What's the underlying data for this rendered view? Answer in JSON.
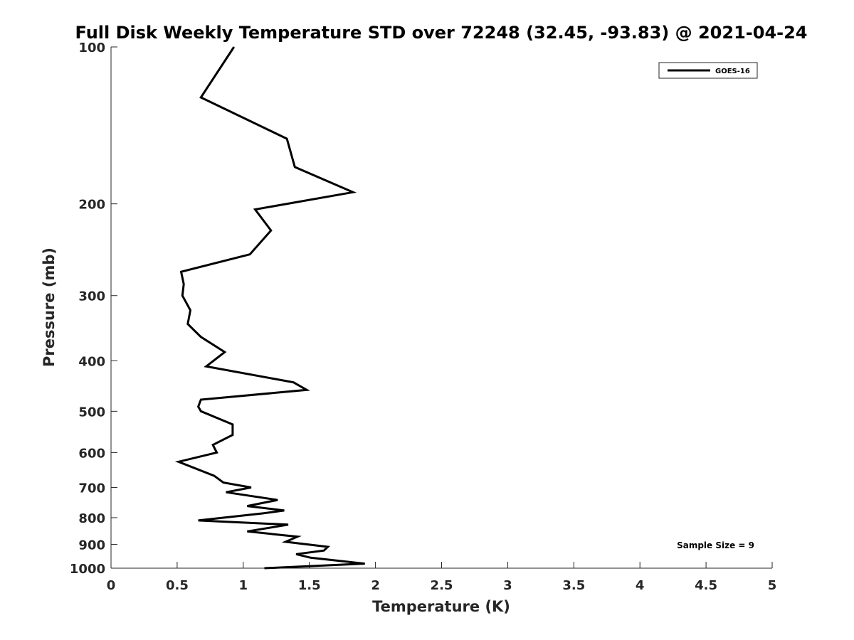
{
  "chart_data": {
    "type": "line",
    "title": "Full Disk Weekly Temperature STD over 72248 (32.45, -93.83) @ 2021-04-24",
    "xlabel": "Temperature (K)",
    "ylabel": "Pressure (mb)",
    "xlim": [
      0,
      5
    ],
    "ylim": [
      100,
      1000
    ],
    "y_scale": "log",
    "y_reversed": true,
    "grid": false,
    "legend_position": "top-right",
    "xticks": [
      0,
      0.5,
      1,
      1.5,
      2,
      2.5,
      3,
      3.5,
      4,
      4.5,
      5
    ],
    "xtick_labels": [
      "0",
      "0.5",
      "1",
      "1.5",
      "2",
      "2.5",
      "3",
      "3.5",
      "4",
      "4.5",
      "5"
    ],
    "yticks": [
      100,
      200,
      300,
      400,
      500,
      600,
      700,
      800,
      900,
      1000
    ],
    "ytick_labels": [
      "100",
      "200",
      "300",
      "400",
      "500",
      "600",
      "700",
      "800",
      "900",
      "1000"
    ],
    "series": [
      {
        "name": "GOES-16",
        "color": "#000000",
        "points": [
          [
            0.93,
            100
          ],
          [
            0.68,
            125
          ],
          [
            1.33,
            150
          ],
          [
            1.39,
            170
          ],
          [
            1.83,
            190
          ],
          [
            1.09,
            205
          ],
          [
            1.21,
            225
          ],
          [
            1.05,
            250
          ],
          [
            0.53,
            270
          ],
          [
            0.55,
            285
          ],
          [
            0.54,
            300
          ],
          [
            0.6,
            320
          ],
          [
            0.58,
            340
          ],
          [
            0.68,
            360
          ],
          [
            0.86,
            385
          ],
          [
            0.72,
            410
          ],
          [
            1.38,
            440
          ],
          [
            1.48,
            455
          ],
          [
            0.68,
            475
          ],
          [
            0.66,
            490
          ],
          [
            0.68,
            500
          ],
          [
            0.92,
            530
          ],
          [
            0.92,
            555
          ],
          [
            0.77,
            580
          ],
          [
            0.8,
            600
          ],
          [
            0.51,
            625
          ],
          [
            0.78,
            665
          ],
          [
            0.85,
            685
          ],
          [
            1.06,
            700
          ],
          [
            0.87,
            715
          ],
          [
            1.26,
            740
          ],
          [
            1.03,
            760
          ],
          [
            1.31,
            775
          ],
          [
            1.15,
            785
          ],
          [
            0.66,
            810
          ],
          [
            1.34,
            825
          ],
          [
            1.03,
            850
          ],
          [
            1.41,
            870
          ],
          [
            1.32,
            890
          ],
          [
            1.64,
            910
          ],
          [
            1.61,
            925
          ],
          [
            1.4,
            940
          ],
          [
            1.51,
            955
          ],
          [
            1.92,
            980
          ],
          [
            1.16,
            1000
          ]
        ]
      }
    ],
    "annotation": "Sample Size = 9"
  }
}
